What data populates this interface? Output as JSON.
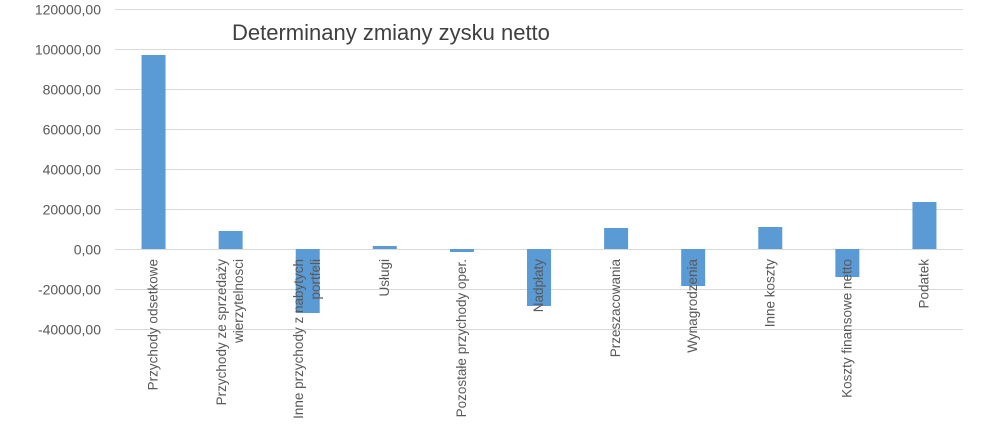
{
  "chart_data": {
    "type": "bar",
    "title": "Determinany zmiany zysku netto",
    "xlabel": "",
    "ylabel": "",
    "ylim": [
      -40000,
      120000
    ],
    "grid": true,
    "legend": "none",
    "bar_color": "#5b9bd5",
    "grid_color": "#d9d9d9",
    "y_ticks": [
      {
        "value": 120000,
        "label": "120000,00"
      },
      {
        "value": 100000,
        "label": "100000,00"
      },
      {
        "value": 80000,
        "label": "80000,00"
      },
      {
        "value": 60000,
        "label": "60000,00"
      },
      {
        "value": 40000,
        "label": "40000,00"
      },
      {
        "value": 20000,
        "label": "20000,00"
      },
      {
        "value": 0,
        "label": "0,00"
      },
      {
        "value": -20000,
        "label": "-20000,00"
      },
      {
        "value": -40000,
        "label": "-40000,00"
      }
    ],
    "categories": [
      [
        "Przychody odsetkowe"
      ],
      [
        "Przychody ze sprzedaży",
        "wierzytelnosci"
      ],
      [
        "Inne przychody z nabytych",
        "portfeli"
      ],
      [
        "Usługi"
      ],
      [
        "Pozostałe przychody oper."
      ],
      [
        "Nadpłaty"
      ],
      [
        "Przeszacowania"
      ],
      [
        "Wynagrodzenia"
      ],
      [
        "Inne koszty"
      ],
      [
        "Koszty finansowe netto"
      ],
      [
        "Podatek"
      ]
    ],
    "values": [
      97000,
      9000,
      -32000,
      1500,
      -1500,
      -28500,
      10500,
      -18500,
      11000,
      -14000,
      23500
    ]
  }
}
